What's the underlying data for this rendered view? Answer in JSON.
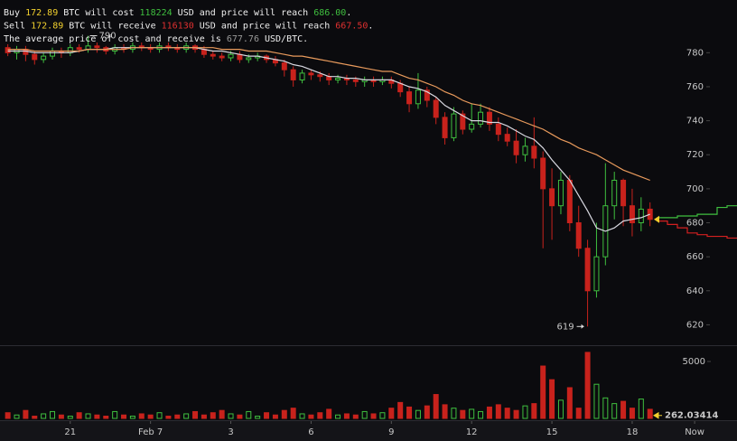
{
  "chart_data": {
    "type": "candlestick",
    "info": [
      [
        "Buy ",
        "172.89",
        " BTC will cost ",
        "118224",
        " USD and price will reach ",
        "686.00",
        "."
      ],
      [
        "Sell ",
        "172.89",
        " BTC will receive ",
        "116130",
        " USD and price will reach ",
        "667.50",
        "."
      ],
      [
        "The average price of cost and receive is ",
        "677.76",
        " USD/BTC."
      ]
    ],
    "x": [
      -56,
      -48,
      -40,
      -32,
      -24,
      -16,
      -8,
      0,
      8,
      16,
      24,
      32,
      40,
      48,
      56,
      64,
      72,
      80,
      88,
      96,
      104,
      112,
      120,
      128,
      136,
      144,
      152,
      160,
      168,
      176,
      184,
      192,
      200,
      208,
      216,
      224,
      232,
      240,
      248,
      256,
      264,
      272,
      280,
      288,
      296,
      304,
      312,
      320,
      328,
      336,
      344,
      352,
      360,
      368,
      376,
      384,
      392,
      400,
      408,
      416,
      424,
      432,
      440,
      448,
      456,
      464,
      472,
      480,
      488,
      496,
      504,
      512,
      520
    ],
    "open": [
      783,
      780,
      782,
      779,
      776,
      778,
      781,
      780,
      783,
      782,
      784,
      783,
      781,
      783,
      782,
      784,
      783,
      782,
      784,
      783,
      782,
      784,
      782,
      779,
      778,
      777,
      779,
      776,
      777,
      778,
      776,
      774,
      770,
      764,
      768,
      767,
      766,
      764,
      765,
      764,
      763,
      764,
      763,
      764,
      762,
      757,
      750,
      758,
      752,
      742,
      730,
      744,
      735,
      738,
      745,
      738,
      732,
      728,
      720,
      725,
      718,
      700,
      690,
      705,
      680,
      665,
      640,
      660,
      690,
      705,
      690,
      680,
      688
    ],
    "high": [
      785,
      784,
      784,
      781,
      780,
      783,
      783,
      785,
      785,
      790,
      786,
      784,
      785,
      785,
      786,
      786,
      785,
      786,
      786,
      785,
      786,
      785,
      784,
      781,
      780,
      781,
      781,
      779,
      780,
      779,
      778,
      776,
      772,
      770,
      770,
      769,
      768,
      767,
      767,
      766,
      766,
      766,
      766,
      766,
      764,
      760,
      768,
      760,
      754,
      745,
      748,
      746,
      750,
      750,
      748,
      742,
      736,
      735,
      730,
      742,
      722,
      712,
      710,
      708,
      690,
      670,
      680,
      715,
      710,
      706,
      700,
      695,
      692
    ],
    "low": [
      778,
      776,
      775,
      773,
      774,
      776,
      777,
      778,
      780,
      780,
      780,
      779,
      779,
      780,
      780,
      781,
      780,
      780,
      781,
      780,
      780,
      780,
      777,
      776,
      775,
      775,
      774,
      774,
      775,
      774,
      772,
      766,
      760,
      762,
      764,
      763,
      761,
      762,
      761,
      760,
      760,
      760,
      761,
      759,
      754,
      745,
      747,
      748,
      738,
      726,
      728,
      732,
      733,
      736,
      734,
      728,
      725,
      715,
      716,
      712,
      665,
      670,
      685,
      675,
      660,
      619,
      636,
      655,
      682,
      678,
      672,
      675,
      678
    ],
    "close": [
      780,
      782,
      779,
      776,
      778,
      781,
      780,
      783,
      782,
      784,
      783,
      781,
      783,
      782,
      784,
      783,
      782,
      784,
      783,
      782,
      784,
      782,
      779,
      778,
      777,
      779,
      776,
      777,
      778,
      776,
      774,
      770,
      764,
      768,
      767,
      766,
      764,
      765,
      764,
      763,
      764,
      763,
      764,
      762,
      757,
      750,
      758,
      752,
      742,
      730,
      744,
      735,
      738,
      745,
      738,
      732,
      728,
      720,
      725,
      718,
      700,
      690,
      705,
      680,
      665,
      640,
      660,
      690,
      705,
      690,
      680,
      688,
      682
    ],
    "volume": [
      500,
      300,
      700,
      200,
      400,
      600,
      300,
      200,
      500,
      400,
      300,
      200,
      600,
      300,
      200,
      400,
      300,
      500,
      200,
      300,
      400,
      600,
      300,
      500,
      700,
      400,
      300,
      600,
      200,
      500,
      300,
      700,
      900,
      400,
      300,
      500,
      800,
      300,
      400,
      300,
      600,
      400,
      500,
      900,
      1400,
      1000,
      700,
      1100,
      2100,
      1200,
      900,
      700,
      800,
      600,
      1000,
      1200,
      900,
      700,
      1100,
      1300,
      4600,
      3400,
      1600,
      2700,
      900,
      5800,
      3000,
      1800,
      1300,
      1500,
      900,
      1700,
      800
    ],
    "moving_averages": [
      {
        "color": "#d8d8e0",
        "values": [
          781,
          781,
          781,
          780,
          780,
          780,
          780,
          780,
          781,
          782,
          782,
          782,
          783,
          783,
          783,
          783,
          783,
          783,
          783,
          783,
          783,
          783,
          782,
          781,
          781,
          780,
          779,
          778,
          778,
          777,
          776,
          775,
          773,
          772,
          770,
          768,
          766,
          766,
          765,
          765,
          764,
          764,
          764,
          764,
          762,
          760,
          759,
          757,
          754,
          749,
          746,
          743,
          740,
          740,
          739,
          739,
          737,
          734,
          731,
          729,
          724,
          717,
          711,
          705,
          696,
          687,
          677,
          675,
          677,
          681,
          682,
          683,
          685
        ]
      },
      {
        "color": "#e89a5c",
        "values": [
          782,
          782,
          782,
          781,
          781,
          781,
          781,
          781,
          781,
          782,
          782,
          782,
          782,
          782,
          783,
          783,
          783,
          783,
          783,
          783,
          783,
          783,
          783,
          783,
          782,
          782,
          782,
          781,
          781,
          781,
          780,
          779,
          778,
          778,
          777,
          776,
          775,
          774,
          773,
          772,
          771,
          770,
          769,
          769,
          767,
          765,
          764,
          762,
          760,
          757,
          755,
          752,
          750,
          749,
          747,
          745,
          743,
          741,
          739,
          737,
          735,
          732,
          729,
          727,
          724,
          722,
          720,
          717,
          714,
          711,
          709,
          707,
          705
        ]
      }
    ],
    "ask_depth": [
      683,
      683,
      684,
      684,
      685,
      685,
      689,
      690
    ],
    "bid_depth": [
      681,
      679,
      677,
      674,
      673,
      672,
      672,
      671
    ],
    "high_marker": 790,
    "low_marker": 619,
    "current_volume": 262.03414,
    "xlim": [
      -63,
      598
    ],
    "xticks": [
      {
        "value": 0,
        "label": "21"
      },
      {
        "value": 72,
        "label": "Feb 7"
      },
      {
        "value": 144,
        "label": "3"
      },
      {
        "value": 216,
        "label": "6"
      },
      {
        "value": 288,
        "label": "9"
      },
      {
        "value": 360,
        "label": "12"
      },
      {
        "value": 432,
        "label": "15"
      },
      {
        "value": 504,
        "label": "18"
      },
      {
        "value": 560,
        "label": "Now"
      }
    ],
    "ylim": [
      608,
      811
    ],
    "yticks": [
      620,
      640,
      660,
      680,
      700,
      720,
      740,
      760,
      780
    ],
    "y2lim": [
      0,
      6350
    ],
    "y2ticks": [
      5000
    ],
    "up_color": "#3fbf3f",
    "down_color": "#c8221c"
  }
}
